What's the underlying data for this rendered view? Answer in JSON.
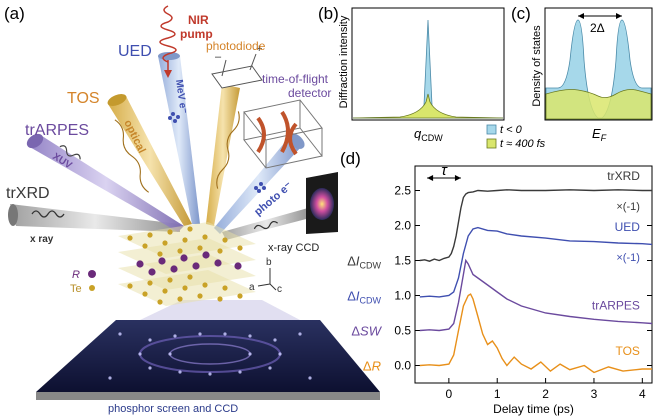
{
  "panel_labels": {
    "a": "(a)",
    "b": "(b)",
    "c": "(c)",
    "d": "(d)"
  },
  "colors": {
    "trxrd": "#3a3a3a",
    "ued": "#3f4fb0",
    "trarpes": "#6b4a9e",
    "tos": "#e8901a",
    "pump": "#c0392b",
    "photodiode": "#d4842a",
    "t_lt_0_fill": "#a6d8ea",
    "t_400fs_fill": "#d9e66c"
  },
  "schematic": {
    "pump_label": "NIR\npump",
    "photodiode_label": "photodiode",
    "ued_label": "UED",
    "ued_beam_label": "MeV e⁻",
    "tos_label": "TOS",
    "tos_beam_label": "optical",
    "trarpes_label": "trARPES",
    "trarpes_beam_label": "XUV",
    "trxrd_label": "trXRD",
    "trxrd_beam_label": "x ray",
    "tof_label": "time-of-flight\ndetector",
    "photo_e_label": "photo e⁻",
    "xray_ccd_label": "x-ray CCD",
    "legend_R": "R",
    "legend_Te": "Te",
    "axis_a": "a",
    "axis_b": "b",
    "axis_c": "c",
    "screen_label": "phosphor screen and CCD",
    "pd_minus": "–",
    "pd_plus": "+"
  },
  "panel_b": {
    "ylabel": "Diffraction intensity",
    "xlabel": "q",
    "xlabel_sub": "CDW"
  },
  "panel_c": {
    "ylabel": "Density of states",
    "xlabel": "E",
    "xlabel_sub": "F",
    "gap_label": "2Δ"
  },
  "legend_bc": {
    "t_lt_0": "t < 0",
    "t_400fs": "t ≈ 400 fs"
  },
  "chart_data": {
    "type": "line",
    "xlabel": "Delay time (ps)",
    "xlim": [
      -0.7,
      4.2
    ],
    "ylim": [
      -0.25,
      2.85
    ],
    "xticks": [
      0,
      1,
      2,
      3,
      4
    ],
    "yticks": [
      0.0,
      0.5,
      1.0,
      1.5,
      2.0,
      2.5
    ],
    "ytick_labels": [
      "0.0",
      "0.5",
      "1.0",
      "1.5",
      "2.0",
      "2.5"
    ],
    "ylabels": [
      {
        "prefix": "Δ",
        "main": "I",
        "sub": "CDW",
        "color": "#3a3a3a",
        "y": 1.5
      },
      {
        "prefix": "Δ",
        "main": "I",
        "sub": "CDW",
        "color": "#3f4fb0",
        "y": 1.0
      },
      {
        "prefix": "Δ",
        "main": "SW",
        "sub": "",
        "color": "#6b4a9e",
        "y": 0.5
      },
      {
        "prefix": "Δ",
        "main": "R",
        "sub": "",
        "color": "#e8901a",
        "y": 0.0
      }
    ],
    "tau_label": "τ",
    "series": [
      {
        "name": "trXRD",
        "note": "×(-1)",
        "color": "#3a3a3a",
        "x": [
          -0.6,
          -0.5,
          -0.4,
          -0.3,
          -0.2,
          -0.1,
          0.0,
          0.05,
          0.1,
          0.15,
          0.2,
          0.25,
          0.3,
          0.35,
          0.4,
          0.5,
          0.6,
          0.8,
          1.0,
          1.2,
          1.5,
          2.0,
          2.5,
          3.0,
          3.5,
          4.0,
          4.2
        ],
        "y": [
          1.5,
          1.51,
          1.49,
          1.52,
          1.5,
          1.53,
          1.55,
          1.6,
          1.7,
          1.85,
          2.05,
          2.25,
          2.4,
          2.45,
          2.47,
          2.48,
          2.5,
          2.49,
          2.5,
          2.51,
          2.5,
          2.5,
          2.51,
          2.5,
          2.51,
          2.5,
          2.5
        ]
      },
      {
        "name": "UED",
        "note": "×(-1)",
        "color": "#3f4fb0",
        "x": [
          -0.6,
          -0.4,
          -0.2,
          0.0,
          0.1,
          0.2,
          0.3,
          0.4,
          0.5,
          0.6,
          0.8,
          1.0,
          1.2,
          1.5,
          2.0,
          2.5,
          3.0,
          3.5,
          4.0,
          4.2
        ],
        "y": [
          0.98,
          0.99,
          0.98,
          1.0,
          1.05,
          1.25,
          1.6,
          1.85,
          1.95,
          1.97,
          1.93,
          1.92,
          1.88,
          1.85,
          1.82,
          1.78,
          1.77,
          1.75,
          1.74,
          1.73
        ]
      },
      {
        "name": "trARPES",
        "color": "#6b4a9e",
        "x": [
          -0.6,
          -0.4,
          -0.2,
          0.0,
          0.1,
          0.2,
          0.3,
          0.35,
          0.4,
          0.5,
          0.6,
          0.8,
          1.0,
          1.2,
          1.5,
          2.0,
          2.5,
          3.0,
          3.5,
          4.0,
          4.2
        ],
        "y": [
          0.5,
          0.51,
          0.5,
          0.52,
          0.6,
          0.9,
          1.3,
          1.5,
          1.45,
          1.3,
          1.25,
          1.15,
          1.05,
          0.95,
          0.85,
          0.75,
          0.7,
          0.66,
          0.63,
          0.61,
          0.6
        ]
      },
      {
        "name": "TOS",
        "color": "#e8901a",
        "x": [
          -0.6,
          -0.4,
          -0.2,
          0.0,
          0.1,
          0.2,
          0.3,
          0.4,
          0.45,
          0.5,
          0.6,
          0.7,
          0.8,
          0.9,
          1.0,
          1.1,
          1.2,
          1.35,
          1.5,
          1.7,
          1.9,
          2.1,
          2.3,
          2.5,
          2.8,
          3.0,
          3.3,
          3.6,
          4.0,
          4.2
        ],
        "y": [
          0.0,
          0.01,
          0.0,
          0.02,
          0.15,
          0.5,
          0.85,
          1.0,
          1.02,
          0.95,
          0.7,
          0.45,
          0.3,
          0.35,
          0.25,
          0.1,
          0.0,
          0.12,
          0.02,
          -0.05,
          0.05,
          -0.08,
          0.02,
          -0.06,
          0.0,
          -0.1,
          -0.02,
          -0.08,
          -0.05,
          -0.05
        ]
      }
    ]
  }
}
